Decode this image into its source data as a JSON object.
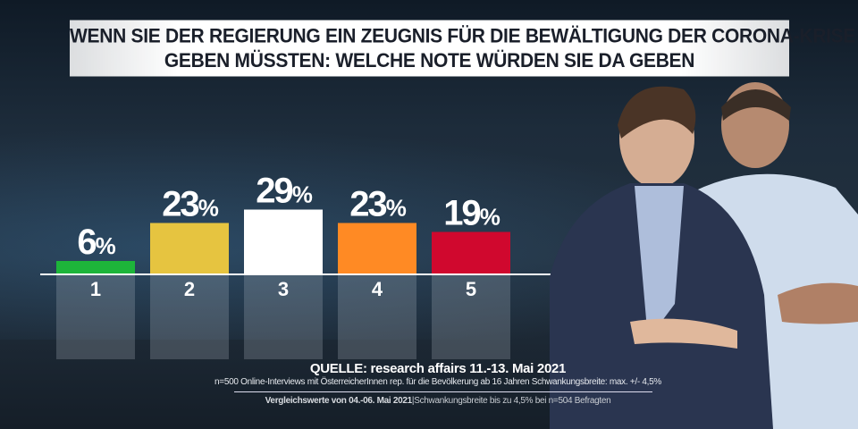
{
  "title": {
    "line1": "WENN SIE DER REGIERUNG EIN ZEUGNIS FÜR DIE BEWÄLTIGUNG DER CORONA-KRISE",
    "line2": "GEBEN MÜSSTEN: WELCHE NOTE WÜRDEN SIE DA GEBEN"
  },
  "chart_data": {
    "type": "bar",
    "categories": [
      "1",
      "2",
      "3",
      "4",
      "5"
    ],
    "values": [
      6,
      23,
      29,
      23,
      19
    ],
    "value_labels": [
      "6%",
      "23%",
      "29%",
      "23%",
      "19%"
    ],
    "colors": [
      "#1db53a",
      "#e6c440",
      "#ffffff",
      "#ff8a24",
      "#d0082e"
    ],
    "unit": "%",
    "grid": false
  },
  "source": {
    "line1": "QUELLE: research affairs 11.-13. Mai 2021",
    "line2": "n=500 Online-Interviews mit ÖsterreicherInnen rep. für die Bevölkerung ab 16 Jahren  Schwankungsbreite: max. +/- 4,5%",
    "line3_bold": "Vergleichswerte von  04.-06. Mai 2021",
    "line3_rest": "|Schwankungsbreite bis zu 4,5% bei n=504 Befragten"
  }
}
